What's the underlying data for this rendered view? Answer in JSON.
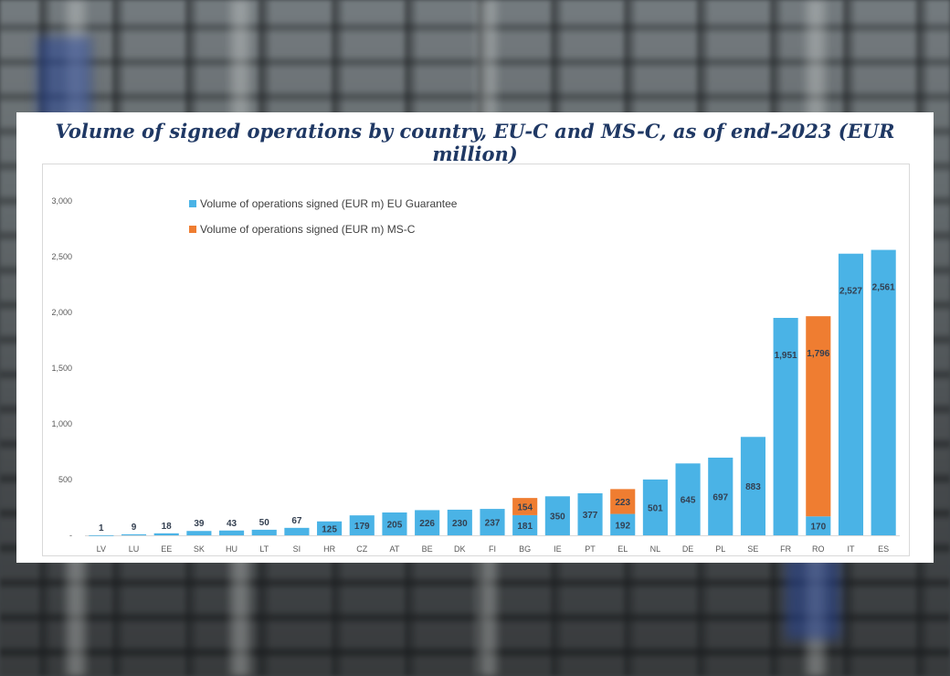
{
  "colors": {
    "eu": "#4ab3e6",
    "msc": "#ef7d31"
  },
  "chart_data": {
    "type": "bar",
    "stacked": true,
    "title": "Volume of signed operations by country, EU-C and MS-C, as of end-2023 (EUR  million)",
    "xlabel": "",
    "ylabel": "",
    "ylim": [
      0,
      3000
    ],
    "yticks": [
      0,
      500,
      1000,
      1500,
      2000,
      2500,
      3000
    ],
    "ytick_labels": [
      "-",
      "500",
      "1,000",
      "1,500",
      "2,000",
      "2,500",
      "3,000"
    ],
    "grid": false,
    "legend_position": "top-left",
    "categories": [
      "LV",
      "LU",
      "EE",
      "SK",
      "HU",
      "LT",
      "SI",
      "HR",
      "CZ",
      "AT",
      "BE",
      "DK",
      "FI",
      "BG",
      "IE",
      "PT",
      "EL",
      "NL",
      "DE",
      "PL",
      "SE",
      "FR",
      "RO",
      "IT",
      "ES"
    ],
    "series": [
      {
        "name": "Volume of operations signed (EUR m) EU Guarantee",
        "values": [
          1,
          9,
          18,
          39,
          43,
          50,
          67,
          125,
          179,
          205,
          226,
          230,
          237,
          181,
          350,
          377,
          192,
          501,
          645,
          697,
          883,
          1951,
          170,
          2527,
          2561
        ],
        "labels": [
          "1",
          "9",
          "18",
          "39",
          "43",
          "50",
          "67",
          "125",
          "179",
          "205",
          "226",
          "230",
          "237",
          "181",
          "350",
          "377",
          "192",
          "501",
          "645",
          "697",
          "883",
          "1,951",
          "170",
          "2,527",
          "2,561"
        ]
      },
      {
        "name": "Volume of operations signed (EUR m) MS-C",
        "values": [
          0,
          0,
          0,
          0,
          0,
          0,
          0,
          0,
          0,
          0,
          0,
          0,
          0,
          154,
          0,
          0,
          223,
          0,
          0,
          0,
          0,
          0,
          1796,
          0,
          0
        ],
        "labels": [
          "",
          "",
          "",
          "",
          "",
          "",
          "",
          "",
          "",
          "",
          "",
          "",
          "",
          "154",
          "",
          "",
          "223",
          "",
          "",
          "",
          "",
          "",
          "1,796",
          "",
          ""
        ]
      }
    ]
  }
}
